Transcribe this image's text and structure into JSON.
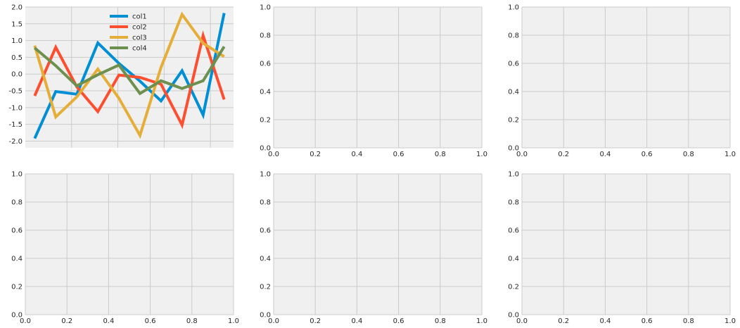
{
  "colors": {
    "background": "#ffffff",
    "panel": "#f0f0f0",
    "grid": "#cbcbcb",
    "text": "#262626"
  },
  "chart_data": [
    {
      "type": "line",
      "x_ticks_visible": false,
      "xlim": [
        0,
        9
      ],
      "ylim": [
        -2.2,
        2.0
      ],
      "y_ticks": [
        "-2.0",
        "-1.5",
        "-1.0",
        "-0.5",
        "0.0",
        "0.5",
        "1.0",
        "1.5",
        "2.0"
      ],
      "y_tick_values": [
        -2.0,
        -1.5,
        -1.0,
        -0.5,
        0.0,
        0.5,
        1.0,
        1.5,
        2.0
      ],
      "x_grid_values": [
        2,
        4,
        6,
        8
      ],
      "legend": "top-center",
      "grid": true,
      "x": [
        0,
        1,
        2,
        3,
        4,
        5,
        6,
        7,
        8,
        9
      ],
      "series": [
        {
          "name": "col1",
          "color": "#008fd5",
          "values": [
            -1.92,
            -0.52,
            -0.6,
            0.93,
            0.32,
            -0.21,
            -0.8,
            0.1,
            -1.22,
            1.82
          ]
        },
        {
          "name": "col2",
          "color": "#fc4f30",
          "values": [
            -0.65,
            0.8,
            -0.38,
            -1.12,
            -0.03,
            -0.1,
            -0.3,
            -1.52,
            1.15,
            -0.76
          ]
        },
        {
          "name": "col3",
          "color": "#e5ae38",
          "values": [
            0.85,
            -1.28,
            -0.68,
            0.15,
            -0.72,
            -1.83,
            0.2,
            1.78,
            0.92,
            0.52
          ]
        },
        {
          "name": "col4",
          "color": "#6d904f",
          "values": [
            0.78,
            0.25,
            -0.35,
            -0.02,
            0.27,
            -0.58,
            -0.2,
            -0.43,
            -0.2,
            0.82
          ]
        }
      ]
    },
    {
      "type": "line",
      "xlim": [
        0,
        1
      ],
      "ylim": [
        0,
        1
      ],
      "x_ticks": [
        "0.0",
        "0.2",
        "0.4",
        "0.6",
        "0.8",
        "1.0"
      ],
      "y_ticks": [
        "0.0",
        "0.2",
        "0.4",
        "0.6",
        "0.8",
        "1.0"
      ],
      "grid": true,
      "series": []
    },
    {
      "type": "line",
      "xlim": [
        0,
        1
      ],
      "ylim": [
        0,
        1
      ],
      "x_ticks": [
        "0.0",
        "0.2",
        "0.4",
        "0.6",
        "0.8",
        "1.0"
      ],
      "y_ticks": [
        "0.0",
        "0.2",
        "0.4",
        "0.6",
        "0.8",
        "1.0"
      ],
      "grid": true,
      "series": []
    },
    {
      "type": "line",
      "xlim": [
        0,
        1
      ],
      "ylim": [
        0,
        1
      ],
      "x_ticks": [
        "0.0",
        "0.2",
        "0.4",
        "0.6",
        "0.8",
        "1.0"
      ],
      "y_ticks": [
        "0.0",
        "0.2",
        "0.4",
        "0.6",
        "0.8",
        "1.0"
      ],
      "grid": true,
      "series": []
    },
    {
      "type": "line",
      "xlim": [
        0,
        1
      ],
      "ylim": [
        0,
        1
      ],
      "x_ticks": [
        "0.0",
        "0.2",
        "0.4",
        "0.6",
        "0.8",
        "1.0"
      ],
      "y_ticks": [
        "0.0",
        "0.2",
        "0.4",
        "0.6",
        "0.8",
        "1.0"
      ],
      "grid": true,
      "series": []
    },
    {
      "type": "line",
      "xlim": [
        0,
        1
      ],
      "ylim": [
        0,
        1
      ],
      "x_ticks": [
        "0.0",
        "0.2",
        "0.4",
        "0.6",
        "0.8",
        "1.0"
      ],
      "y_ticks": [
        "0.0",
        "0.2",
        "0.4",
        "0.6",
        "0.8",
        "1.0"
      ],
      "grid": true,
      "series": []
    }
  ]
}
